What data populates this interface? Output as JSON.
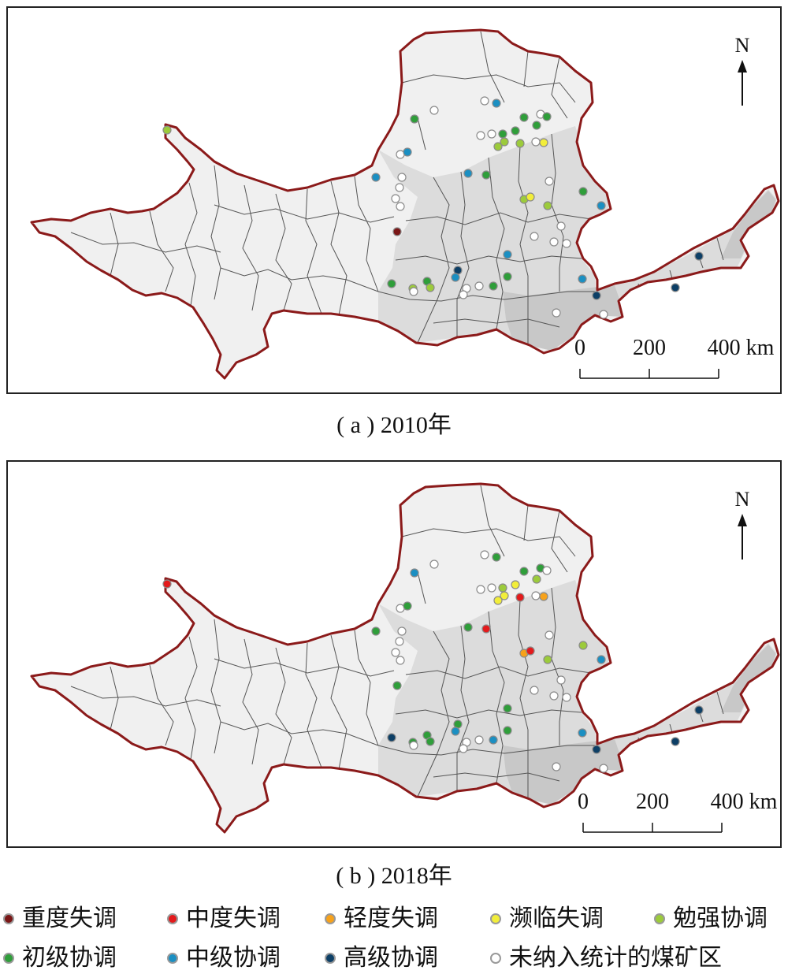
{
  "panels": [
    {
      "id": "a",
      "caption": "( a ) 2010年",
      "points": [
        {
          "x": 202,
          "y": 155,
          "c": "miansqiang"
        },
        {
          "x": 541,
          "y": 130,
          "c": "none"
        },
        {
          "x": 605,
          "y": 118,
          "c": "none"
        },
        {
          "x": 620,
          "y": 121,
          "c": "zhongji"
        },
        {
          "x": 516,
          "y": 141,
          "c": "chuji"
        },
        {
          "x": 655,
          "y": 139,
          "c": "chuji"
        },
        {
          "x": 676,
          "y": 135,
          "c": "none"
        },
        {
          "x": 684,
          "y": 138,
          "c": "chuji"
        },
        {
          "x": 671,
          "y": 149,
          "c": "chuji"
        },
        {
          "x": 644,
          "y": 156,
          "c": "chuji"
        },
        {
          "x": 628,
          "y": 160,
          "c": "chuji"
        },
        {
          "x": 614,
          "y": 160,
          "c": "none"
        },
        {
          "x": 600,
          "y": 162,
          "c": "none"
        },
        {
          "x": 630,
          "y": 170,
          "c": "miansqiang"
        },
        {
          "x": 622,
          "y": 176,
          "c": "miansqiang"
        },
        {
          "x": 650,
          "y": 172,
          "c": "miansqiang"
        },
        {
          "x": 670,
          "y": 170,
          "c": "none"
        },
        {
          "x": 680,
          "y": 171,
          "c": "binlin"
        },
        {
          "x": 498,
          "y": 186,
          "c": "none"
        },
        {
          "x": 507,
          "y": 183,
          "c": "zhongji"
        },
        {
          "x": 467,
          "y": 215,
          "c": "zhongji"
        },
        {
          "x": 500,
          "y": 215,
          "c": "none"
        },
        {
          "x": 497,
          "y": 228,
          "c": "none"
        },
        {
          "x": 492,
          "y": 242,
          "c": "none"
        },
        {
          "x": 498,
          "y": 252,
          "c": "none"
        },
        {
          "x": 584,
          "y": 210,
          "c": "zhongji"
        },
        {
          "x": 607,
          "y": 212,
          "c": "chuji"
        },
        {
          "x": 687,
          "y": 220,
          "c": "none"
        },
        {
          "x": 730,
          "y": 233,
          "c": "chuji"
        },
        {
          "x": 655,
          "y": 243,
          "c": "miansqiang"
        },
        {
          "x": 663,
          "y": 240,
          "c": "binlin"
        },
        {
          "x": 685,
          "y": 251,
          "c": "miansqiang"
        },
        {
          "x": 753,
          "y": 251,
          "c": "zhongji"
        },
        {
          "x": 494,
          "y": 284,
          "c": "zhongdu"
        },
        {
          "x": 702,
          "y": 277,
          "c": "none"
        },
        {
          "x": 668,
          "y": 290,
          "c": "none"
        },
        {
          "x": 693,
          "y": 297,
          "c": "none"
        },
        {
          "x": 709,
          "y": 299,
          "c": "none"
        },
        {
          "x": 634,
          "y": 313,
          "c": "zhongji"
        },
        {
          "x": 571,
          "y": 333,
          "c": "gaoji"
        },
        {
          "x": 568,
          "y": 342,
          "c": "zhongji"
        },
        {
          "x": 634,
          "y": 341,
          "c": "chuji"
        },
        {
          "x": 729,
          "y": 344,
          "c": "zhongji"
        },
        {
          "x": 487,
          "y": 350,
          "c": "chuji"
        },
        {
          "x": 532,
          "y": 347,
          "c": "chuji"
        },
        {
          "x": 536,
          "y": 355,
          "c": "miansqiang"
        },
        {
          "x": 514,
          "y": 356,
          "c": "miansqiang"
        },
        {
          "x": 515,
          "y": 360,
          "c": "none"
        },
        {
          "x": 582,
          "y": 356,
          "c": "none"
        },
        {
          "x": 598,
          "y": 353,
          "c": "none"
        },
        {
          "x": 616,
          "y": 353,
          "c": "chuji"
        },
        {
          "x": 578,
          "y": 364,
          "c": "none"
        },
        {
          "x": 747,
          "y": 365,
          "c": "gaoji"
        },
        {
          "x": 877,
          "y": 315,
          "c": "gaoji"
        },
        {
          "x": 847,
          "y": 355,
          "c": "gaoji"
        },
        {
          "x": 696,
          "y": 387,
          "c": "none"
        },
        {
          "x": 756,
          "y": 389,
          "c": "none"
        }
      ]
    },
    {
      "id": "b",
      "caption": "( b ) 2018年",
      "points": [
        {
          "x": 202,
          "y": 155,
          "c": "zhongdu"
        },
        {
          "x": 541,
          "y": 130,
          "c": "none"
        },
        {
          "x": 605,
          "y": 118,
          "c": "none"
        },
        {
          "x": 620,
          "y": 121,
          "c": "chuji"
        },
        {
          "x": 516,
          "y": 141,
          "c": "zhongji"
        },
        {
          "x": 655,
          "y": 139,
          "c": "chuji"
        },
        {
          "x": 676,
          "y": 135,
          "c": "chuji"
        },
        {
          "x": 684,
          "y": 138,
          "c": "none"
        },
        {
          "x": 671,
          "y": 149,
          "c": "miansqiang"
        },
        {
          "x": 644,
          "y": 156,
          "c": "binlin"
        },
        {
          "x": 628,
          "y": 160,
          "c": "miansqiang"
        },
        {
          "x": 614,
          "y": 160,
          "c": "none"
        },
        {
          "x": 600,
          "y": 162,
          "c": "none"
        },
        {
          "x": 630,
          "y": 170,
          "c": "binlin"
        },
        {
          "x": 622,
          "y": 176,
          "c": "binlin"
        },
        {
          "x": 650,
          "y": 172,
          "c": "zhongdu"
        },
        {
          "x": 670,
          "y": 170,
          "c": "none"
        },
        {
          "x": 680,
          "y": 171,
          "c": "qingdu"
        },
        {
          "x": 498,
          "y": 186,
          "c": "none"
        },
        {
          "x": 507,
          "y": 183,
          "c": "chuji"
        },
        {
          "x": 467,
          "y": 215,
          "c": "chuji"
        },
        {
          "x": 500,
          "y": 215,
          "c": "none"
        },
        {
          "x": 497,
          "y": 228,
          "c": "none"
        },
        {
          "x": 492,
          "y": 242,
          "c": "none"
        },
        {
          "x": 498,
          "y": 252,
          "c": "none"
        },
        {
          "x": 584,
          "y": 210,
          "c": "chuji"
        },
        {
          "x": 607,
          "y": 212,
          "c": "zhongdu"
        },
        {
          "x": 687,
          "y": 220,
          "c": "none"
        },
        {
          "x": 730,
          "y": 233,
          "c": "miansqiang"
        },
        {
          "x": 655,
          "y": 243,
          "c": "qingdu"
        },
        {
          "x": 663,
          "y": 240,
          "c": "zhongdu"
        },
        {
          "x": 685,
          "y": 251,
          "c": "miansqiang"
        },
        {
          "x": 753,
          "y": 251,
          "c": "zhongji"
        },
        {
          "x": 494,
          "y": 284,
          "c": "chuji"
        },
        {
          "x": 702,
          "y": 277,
          "c": "none"
        },
        {
          "x": 668,
          "y": 290,
          "c": "none"
        },
        {
          "x": 693,
          "y": 297,
          "c": "none"
        },
        {
          "x": 709,
          "y": 299,
          "c": "none"
        },
        {
          "x": 634,
          "y": 313,
          "c": "chuji"
        },
        {
          "x": 571,
          "y": 333,
          "c": "chuji"
        },
        {
          "x": 568,
          "y": 342,
          "c": "zhongji"
        },
        {
          "x": 634,
          "y": 341,
          "c": "chuji"
        },
        {
          "x": 729,
          "y": 344,
          "c": "zhongji"
        },
        {
          "x": 487,
          "y": 350,
          "c": "gaoji"
        },
        {
          "x": 532,
          "y": 347,
          "c": "chuji"
        },
        {
          "x": 536,
          "y": 355,
          "c": "chuji"
        },
        {
          "x": 514,
          "y": 356,
          "c": "chuji"
        },
        {
          "x": 515,
          "y": 360,
          "c": "none"
        },
        {
          "x": 582,
          "y": 356,
          "c": "none"
        },
        {
          "x": 598,
          "y": 353,
          "c": "none"
        },
        {
          "x": 616,
          "y": 353,
          "c": "zhongji"
        },
        {
          "x": 578,
          "y": 364,
          "c": "none"
        },
        {
          "x": 747,
          "y": 365,
          "c": "gaoji"
        },
        {
          "x": 877,
          "y": 315,
          "c": "gaoji"
        },
        {
          "x": 847,
          "y": 355,
          "c": "gaoji"
        },
        {
          "x": 696,
          "y": 387,
          "c": "none"
        },
        {
          "x": 756,
          "y": 389,
          "c": "none"
        }
      ]
    }
  ],
  "north_label": "N",
  "scale": {
    "ticks": [
      "0",
      "200",
      "400 km"
    ]
  },
  "categories": [
    {
      "key": "zhongdu_shitiao",
      "label": "重度失调",
      "color": "#7a1616"
    },
    {
      "key": "zhongdu",
      "label": "中度失调",
      "color": "#e31a1c"
    },
    {
      "key": "qingdu",
      "label": "轻度失调",
      "color": "#f7a21b"
    },
    {
      "key": "binlin",
      "label": "濒临失调",
      "color": "#f2ee3a"
    },
    {
      "key": "miansqiang",
      "label": "勉强协调",
      "color": "#9ccb3b"
    },
    {
      "key": "chuji",
      "label": "初级协调",
      "color": "#2f9e3a"
    },
    {
      "key": "zhongji",
      "label": "中级协调",
      "color": "#1b8fc2"
    },
    {
      "key": "gaoji",
      "label": "高级协调",
      "color": "#0d3f66"
    },
    {
      "key": "none",
      "label": "未纳入统计的煤矿区",
      "color": "#ffffff"
    }
  ],
  "map_colors": {
    "boundary": "#8b1a1a",
    "fill_light": "#f0f0f0",
    "fill_mid": "#dcdcdc",
    "fill_dark": "#c8c8c8",
    "lines": "#555555"
  }
}
